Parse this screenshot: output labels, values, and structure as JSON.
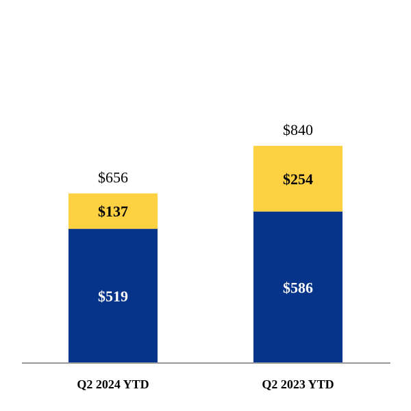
{
  "chart_data": {
    "type": "bar",
    "stacked": true,
    "title": "",
    "xlabel": "",
    "ylabel": "",
    "ylim": [
      0,
      1000
    ],
    "grid": false,
    "legend": "none",
    "categories": [
      "Q2 2024 YTD",
      "Q2 2023 YTD"
    ],
    "series": [
      {
        "name": "bottom",
        "color": "#06348A",
        "label_color": "#FFFFFF",
        "values": [
          519,
          586
        ],
        "labels": [
          "$519",
          "$586"
        ]
      },
      {
        "name": "top",
        "color": "#FDD142",
        "label_color": "#000000",
        "values": [
          137,
          254
        ],
        "labels": [
          "$137",
          "$254"
        ]
      }
    ],
    "totals": [
      656,
      840
    ],
    "total_labels": [
      "$656",
      "$840"
    ],
    "axis_color": "#999999"
  }
}
